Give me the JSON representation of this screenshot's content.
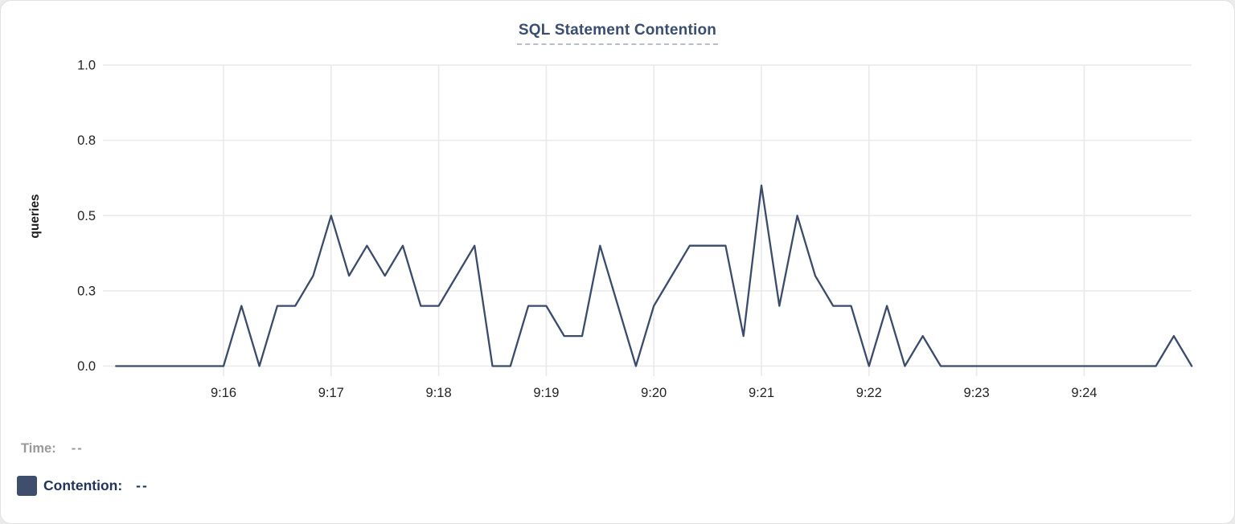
{
  "title": "SQL Statement Contention",
  "colors": {
    "line": "#3b4b6b",
    "swatch": "#3f4e6c",
    "title": "#3a4e70",
    "title_underline": "#b6bcd4",
    "grid": "#e9e9e9",
    "tick_text": "#242424",
    "axis_label_text": "#1c1c1c",
    "time_label": "#97999c",
    "contention_label": "#22345b",
    "card_background": "#ffffff"
  },
  "hover_readout": {
    "time_label": "Time:",
    "time_value": "--",
    "series_label": "Contention:",
    "series_value": "--"
  },
  "chart_data": {
    "type": "line",
    "title": "SQL Statement Contention",
    "xlabel": "",
    "ylabel": "queries",
    "ylim": [
      0,
      1.0
    ],
    "grid": true,
    "legend_position": "bottom-left",
    "x_start_time": "9:15:00",
    "x_end_time": "9:25:00",
    "sample_interval_seconds": 10,
    "y_ticks": [
      {
        "label": "0.0",
        "v": 0
      },
      {
        "label": "0.3",
        "v": 0.25
      },
      {
        "label": "0.5",
        "v": 0.5
      },
      {
        "label": "0.8",
        "v": 0.75
      },
      {
        "label": "1.0",
        "v": 1.0
      }
    ],
    "x_ticks": [
      {
        "label": "9:16",
        "t": 60
      },
      {
        "label": "9:17",
        "t": 120
      },
      {
        "label": "9:18",
        "t": 180
      },
      {
        "label": "9:19",
        "t": 240
      },
      {
        "label": "9:20",
        "t": 300
      },
      {
        "label": "9:21",
        "t": 360
      },
      {
        "label": "9:22",
        "t": 420
      },
      {
        "label": "9:23",
        "t": 480
      },
      {
        "label": "9:24",
        "t": 540
      }
    ],
    "series": [
      {
        "name": "Contention",
        "unit": "queries",
        "start": "9:15:00",
        "interval_seconds": 10,
        "values": [
          0,
          0,
          0,
          0,
          0,
          0,
          0,
          0.2,
          0,
          0.2,
          0.2,
          0.3,
          0.5,
          0.3,
          0.4,
          0.3,
          0.4,
          0.2,
          0.2,
          0.3,
          0.4,
          0,
          0,
          0.2,
          0.2,
          0.1,
          0.1,
          0.4,
          0.2,
          0,
          0.2,
          0.3,
          0.4,
          0.4,
          0.4,
          0.1,
          0.6,
          0.2,
          0.5,
          0.3,
          0.2,
          0.2,
          0,
          0.2,
          0,
          0.1,
          0,
          0,
          0,
          0,
          0,
          0,
          0,
          0,
          0,
          0,
          0,
          0,
          0,
          0.1,
          0
        ]
      }
    ]
  }
}
